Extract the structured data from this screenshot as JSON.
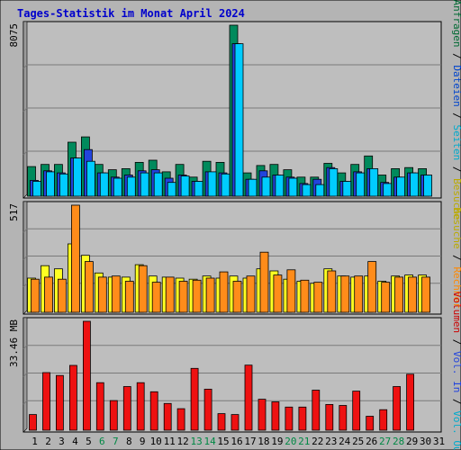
{
  "chart_data": {
    "type": "bar",
    "title": "Tages-Statistik im Monat April 2024",
    "days": [
      "1",
      "2",
      "3",
      "4",
      "5",
      "6",
      "7",
      "8",
      "9",
      "10",
      "11",
      "12",
      "13",
      "14",
      "15",
      "16",
      "17",
      "18",
      "19",
      "20",
      "21",
      "22",
      "23",
      "24",
      "25",
      "26",
      "27",
      "28",
      "29",
      "30",
      "31"
    ],
    "weekend_days": [
      "6",
      "7",
      "13",
      "14",
      "20",
      "21",
      "27",
      "28"
    ],
    "panels": [
      {
        "id": "requests",
        "max_label": "8075",
        "max_value": 8075,
        "right_label": [
          {
            "text": "Anfragen",
            "color": "#006a33"
          },
          {
            "text": " / ",
            "color": "#000000"
          },
          {
            "text": "Dateien",
            "color": "#0044cc"
          },
          {
            "text": " / ",
            "color": "#000000"
          },
          {
            "text": "Seiten",
            "color": "#00aacc"
          },
          {
            "text": " / ",
            "color": "#000000"
          },
          {
            "text": "Besuche",
            "color": "#bbaa00"
          }
        ],
        "series": [
          {
            "name": "Anfragen",
            "color": "#008a5c",
            "values": [
              1400,
              1500,
              1500,
              2550,
              2800,
              1500,
              1250,
              1300,
              1600,
              1700,
              1150,
              1500,
              900,
              1650,
              1600,
              8075,
              1100,
              1450,
              1500,
              1250,
              900,
              900,
              1550,
              1100,
              1500,
              1900,
              1000,
              1300,
              1350,
              1300,
              0
            ]
          },
          {
            "name": "Dateien",
            "color": "#2244dd",
            "values": [
              750,
              1200,
              1100,
              1800,
              2200,
              1100,
              900,
              1000,
              1200,
              1250,
              850,
              1000,
              700,
              1150,
              1100,
              7200,
              800,
              1200,
              1000,
              900,
              600,
              800,
              1350,
              700,
              1150,
              1300,
              650,
              900,
              1100,
              1000,
              0
            ]
          },
          {
            "name": "Seiten",
            "color": "#00ccff",
            "values": [
              700,
              1150,
              1050,
              1800,
              1650,
              1100,
              850,
              900,
              1100,
              1100,
              650,
              950,
              700,
              1150,
              1050,
              7200,
              800,
              900,
              1000,
              850,
              550,
              550,
              1300,
              700,
              1100,
              1300,
              600,
              900,
              1100,
              1000,
              0
            ]
          }
        ]
      },
      {
        "id": "visits",
        "max_label": "517",
        "max_value": 517,
        "right_label": [
          {
            "text": "Besuche",
            "color": "#bbaa00"
          },
          {
            "text": " / ",
            "color": "#000000"
          },
          {
            "text": "Rechner",
            "color": "#ff8800"
          }
        ],
        "series": [
          {
            "name": "Besuche",
            "color": "#ffff22",
            "values": [
              165,
              225,
              210,
              330,
              275,
              190,
              170,
              170,
              230,
              175,
              170,
              165,
              160,
              175,
              165,
              175,
              165,
              210,
              200,
              160,
              150,
              140,
              210,
              175,
              170,
              175,
              150,
              175,
              180,
              180,
              0
            ]
          },
          {
            "name": "Rechner",
            "color": "#ff8c1a",
            "values": [
              160,
              170,
              160,
              517,
              245,
              170,
              175,
              150,
              225,
              145,
              170,
              150,
              155,
              165,
              195,
              150,
              175,
              290,
              180,
              205,
              155,
              145,
              200,
              175,
              175,
              245,
              145,
              170,
              170,
              170,
              0
            ]
          }
        ]
      },
      {
        "id": "volume",
        "max_label": "33.46 MB",
        "max_value": 33.46,
        "right_label": [
          {
            "text": "Volumen",
            "color": "#cc0000"
          },
          {
            "text": " / ",
            "color": "#000000"
          },
          {
            "text": "Vol. In",
            "color": "#2244dd"
          },
          {
            "text": " / ",
            "color": "#000000"
          },
          {
            "text": "Vol. Out",
            "color": "#00aacc"
          }
        ],
        "series": [
          {
            "name": "Volumen",
            "color": "#ee1111",
            "values": [
              4.8,
              17.7,
              16.8,
              19.9,
              33.46,
              14.6,
              9.1,
              13.4,
              14.6,
              11.8,
              8.2,
              6.6,
              19.0,
              12.6,
              5.1,
              4.8,
              20.0,
              9.5,
              8.7,
              7.1,
              7.1,
              12.3,
              7.9,
              7.6,
              12.0,
              4.3,
              6.3,
              13.4,
              17.2,
              0,
              0
            ]
          }
        ]
      }
    ]
  }
}
